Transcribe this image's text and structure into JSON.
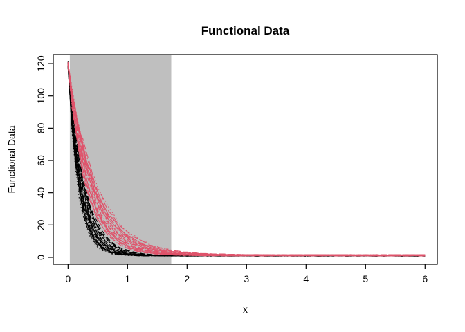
{
  "chart_data": {
    "type": "line",
    "title": "Functional Data",
    "xlabel": "x",
    "ylabel": "Functional Data",
    "x_ticks": [
      0,
      1,
      2,
      3,
      4,
      5,
      6
    ],
    "y_ticks": [
      0,
      20,
      40,
      60,
      80,
      100,
      120
    ],
    "xlim": [
      -0.248,
      6.206
    ],
    "ylim": [
      -4.3,
      125.6
    ],
    "x_range": [
      0,
      6
    ],
    "x_sample_step": 0.0625,
    "grid": false,
    "legend": "none",
    "frame_color": "#000000",
    "background_color": "#FFFFFF",
    "shaded_region": {
      "x_start": 0.03,
      "x_end": 1.735,
      "color": "#BFBFBF",
      "full_height": true
    },
    "curve_model": "y = (start - baseline) * exp(-x / k) + baseline + small noise",
    "line_types": [
      "solid",
      "dashed",
      "dotted",
      "dotdash",
      "longdash"
    ],
    "groups": [
      {
        "name": "black-curves",
        "color": "#000000",
        "n_curves": 20,
        "seed": 7,
        "k": [
          0.18,
          0.23,
          0.2,
          0.26,
          0.17,
          0.21,
          0.28,
          0.16,
          0.24,
          0.19,
          0.22,
          0.27,
          0.175,
          0.25,
          0.205,
          0.185,
          0.23,
          0.21,
          0.195,
          0.26
        ],
        "starts": [
          119.2,
          118.1,
          119.8,
          118.6,
          120.1,
          119.4,
          118.3,
          119.9,
          118.8,
          119.6,
          118.2,
          120.3,
          119.1,
          118.5,
          119.7,
          118.9,
          120.0,
          119.3,
          118.4,
          119.5
        ],
        "baseline_range": [
          0.85,
          1.1
        ]
      },
      {
        "name": "red-curves",
        "color": "#DF536B",
        "n_curves": 20,
        "seed": 99,
        "k": [
          0.33,
          0.43,
          0.37,
          0.31,
          0.47,
          0.34,
          0.4,
          0.44,
          0.32,
          0.38,
          0.42,
          0.35,
          0.49,
          0.33,
          0.39,
          0.45,
          0.36,
          0.41,
          0.43,
          0.3
        ],
        "starts": [
          119.0,
          118.4,
          120.2,
          118.7,
          119.5,
          118.2,
          119.9,
          119.2,
          118.6,
          120.0,
          118.9,
          119.6,
          118.3,
          119.8,
          119.1,
          118.5,
          120.1,
          119.4,
          118.8,
          119.3
        ],
        "baseline_range": [
          1.0,
          1.6
        ]
      }
    ]
  }
}
